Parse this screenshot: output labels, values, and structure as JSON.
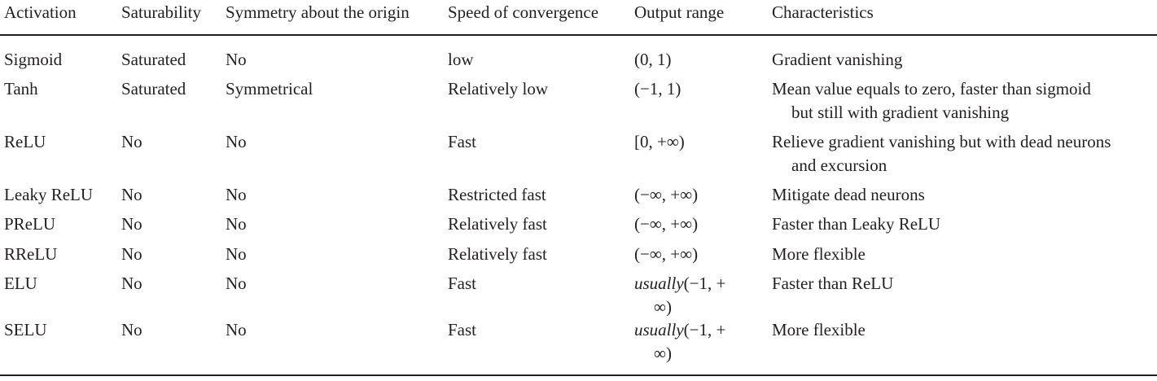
{
  "table": {
    "headers": [
      "Activation",
      "Saturability",
      "Symmetry about the origin",
      "Speed of convergence",
      "Output range",
      "Characteristics"
    ],
    "rows": [
      {
        "activation": "Sigmoid",
        "saturability": "Saturated",
        "symmetry": "No",
        "speed": "low",
        "range": [
          "(0, 1)"
        ],
        "characteristics": [
          "Gradient vanishing"
        ]
      },
      {
        "activation": "Tanh",
        "saturability": "Saturated",
        "symmetry": "Symmetrical",
        "speed": "Relatively low",
        "range": [
          "(−1, 1)"
        ],
        "characteristics": [
          "Mean value equals to zero, faster than sigmoid",
          "but still with gradient vanishing"
        ]
      },
      {
        "activation": "ReLU",
        "saturability": "No",
        "symmetry": "No",
        "speed": "Fast",
        "range": [
          "[0, +∞)"
        ],
        "characteristics": [
          "Relieve gradient vanishing but with dead neurons",
          "and excursion"
        ]
      },
      {
        "activation": "Leaky ReLU",
        "saturability": "No",
        "symmetry": "No",
        "speed": "Restricted fast",
        "range": [
          "(−∞, +∞)"
        ],
        "characteristics": [
          "Mitigate dead neurons"
        ]
      },
      {
        "activation": "PReLU",
        "saturability": "No",
        "symmetry": "No",
        "speed": "Relatively fast",
        "range": [
          "(−∞, +∞)"
        ],
        "characteristics": [
          "Faster than Leaky ReLU"
        ]
      },
      {
        "activation": "RReLU",
        "saturability": "No",
        "symmetry": "No",
        "speed": "Relatively fast",
        "range": [
          "(−∞, +∞)"
        ],
        "characteristics": [
          "More flexible"
        ]
      },
      {
        "activation": "ELU",
        "saturability": "No",
        "symmetry": "No",
        "speed": "Fast",
        "range_italic": "usually",
        "range": [
          "(−1, +",
          "∞)"
        ],
        "characteristics": [
          "Faster than ReLU"
        ]
      },
      {
        "activation": "SELU",
        "saturability": "No",
        "symmetry": "No",
        "speed": "Fast",
        "range_italic": "usually",
        "range": [
          "(−1, +",
          "∞)"
        ],
        "characteristics": [
          "More flexible"
        ]
      }
    ]
  }
}
